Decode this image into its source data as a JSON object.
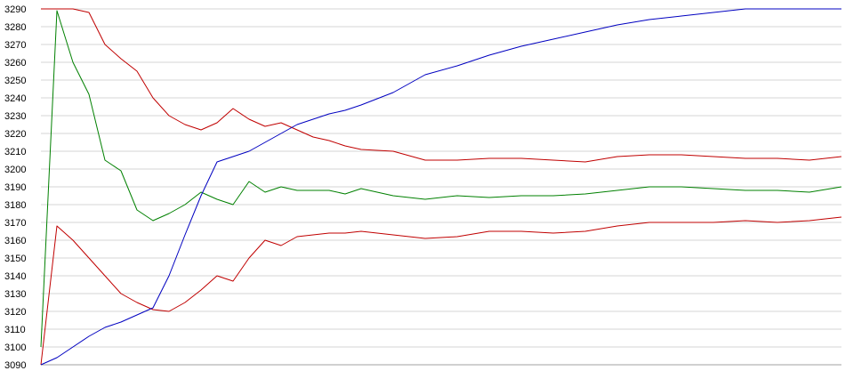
{
  "chart_data": {
    "type": "line",
    "title": "",
    "xlabel": "",
    "ylabel": "",
    "ylim": [
      3090,
      3290
    ],
    "yticks": [
      3090,
      3100,
      3110,
      3120,
      3130,
      3140,
      3150,
      3160,
      3170,
      3180,
      3190,
      3200,
      3210,
      3220,
      3230,
      3240,
      3250,
      3260,
      3270,
      3280,
      3290
    ],
    "grid": true,
    "legend": "none",
    "x": [
      0,
      2,
      4,
      6,
      8,
      10,
      12,
      14,
      16,
      18,
      20,
      22,
      24,
      26,
      28,
      30,
      32,
      34,
      36,
      38,
      40,
      44,
      48,
      52,
      56,
      60,
      64,
      68,
      72,
      76,
      80,
      84,
      88,
      92,
      96,
      100
    ],
    "series": [
      {
        "color": "#c00000",
        "values": [
          3290,
          3290,
          3290,
          3288,
          3270,
          3262,
          3255,
          3240,
          3230,
          3225,
          3222,
          3226,
          3234,
          3228,
          3224,
          3226,
          3222,
          3218,
          3216,
          3213,
          3211,
          3210,
          3205,
          3205,
          3206,
          3206,
          3205,
          3204,
          3207,
          3208,
          3208,
          3207,
          3206,
          3206,
          3205,
          3207
        ]
      },
      {
        "color": "#008000",
        "values": [
          3100,
          3289,
          3260,
          3242,
          3205,
          3199,
          3177,
          3171,
          3175,
          3180,
          3187,
          3183,
          3180,
          3193,
          3187,
          3190,
          3188,
          3188,
          3188,
          3186,
          3189,
          3185,
          3183,
          3185,
          3184,
          3185,
          3185,
          3186,
          3188,
          3190,
          3190,
          3189,
          3188,
          3188,
          3187,
          3190
        ]
      },
      {
        "color": "#c00000",
        "values": [
          3090,
          3168,
          3160,
          3150,
          3140,
          3130,
          3125,
          3121,
          3120,
          3125,
          3132,
          3140,
          3137,
          3150,
          3160,
          3157,
          3162,
          3163,
          3164,
          3164,
          3165,
          3163,
          3161,
          3162,
          3165,
          3165,
          3164,
          3165,
          3168,
          3170,
          3170,
          3170,
          3171,
          3170,
          3171,
          3173
        ]
      },
      {
        "color": "#0000c0",
        "values": [
          3090,
          3094,
          3100,
          3106,
          3111,
          3114,
          3118,
          3122,
          3140,
          3163,
          3185,
          3204,
          3207,
          3210,
          3215,
          3220,
          3225,
          3228,
          3231,
          3233,
          3236,
          3243,
          3253,
          3258,
          3264,
          3269,
          3273,
          3277,
          3281,
          3284,
          3286,
          3288,
          3290,
          3290,
          3290,
          3290
        ]
      }
    ]
  }
}
